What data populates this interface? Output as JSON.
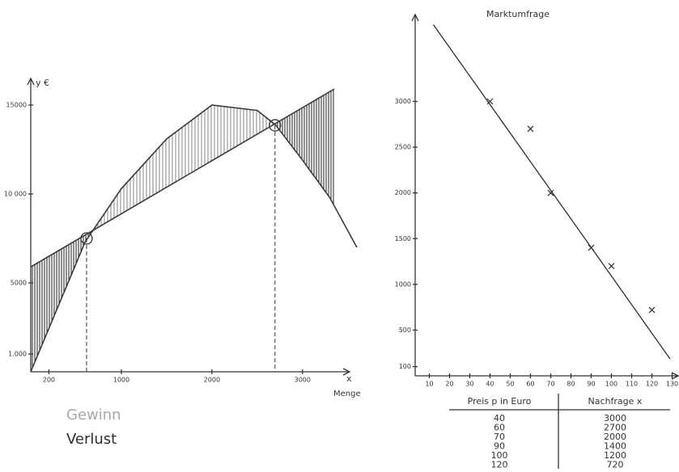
{
  "chart_data": [
    {
      "type": "line",
      "y_label": "y €",
      "x_label": "x",
      "x_axis_name": "Menge",
      "xlim": [
        0,
        3520
      ],
      "ylim": [
        0,
        16500
      ],
      "xticks": [
        200,
        1000,
        2000,
        3000
      ],
      "yticks": [
        {
          "value": 1000,
          "label": "1.000"
        },
        5000,
        {
          "value": 10000,
          "label": "10 000"
        },
        15000
      ],
      "series": [
        {
          "color": "#3a3a3a",
          "x": [
            0,
            600,
            1000,
            1500,
            2000,
            2500,
            2700,
            3000,
            3300,
            3600
          ],
          "values": [
            0,
            7300,
            10300,
            13100,
            15000,
            14700,
            13900,
            11900,
            9800,
            7000
          ]
        },
        {
          "color": "#3a3a3a",
          "x": [
            0,
            3350
          ],
          "values": [
            5900,
            15900
          ]
        }
      ],
      "markers": {
        "x": [
          616,
          2696
        ],
        "values": [
          7500,
          13860
        ]
      },
      "legend": [
        {
          "label": "Gewinn",
          "color": "#a8a8a8"
        },
        {
          "label": "Verlust",
          "color": "#2e2e2e"
        }
      ]
    },
    {
      "type": "scatter",
      "title": "Marktumfrage",
      "xlim": [
        3,
        133
      ],
      "ylim": [
        0,
        3950
      ],
      "xticks": [
        10,
        20,
        30,
        40,
        50,
        60,
        70,
        80,
        90,
        100,
        110,
        120,
        130
      ],
      "yticks": [
        100,
        500,
        1000,
        1500,
        2000,
        2500,
        3000
      ],
      "series": [
        {
          "color": "#2e2e2e",
          "x": [
            40,
            60,
            70,
            90,
            100,
            120
          ],
          "values": [
            3000,
            2700,
            2000,
            1400,
            1200,
            720
          ]
        }
      ],
      "trend": {
        "color": "#2e2e2e",
        "x": [
          12,
          129
        ],
        "values": [
          3840,
          185
        ]
      }
    }
  ],
  "table": {
    "headers": [
      "Preis p in Euro",
      "Nachfrage x"
    ],
    "rows": [
      [
        "40",
        "3000"
      ],
      [
        "60",
        "2700"
      ],
      [
        "70",
        "2000"
      ],
      [
        "90",
        "1400"
      ],
      [
        "100",
        "1200"
      ],
      [
        "120",
        "720"
      ]
    ]
  }
}
